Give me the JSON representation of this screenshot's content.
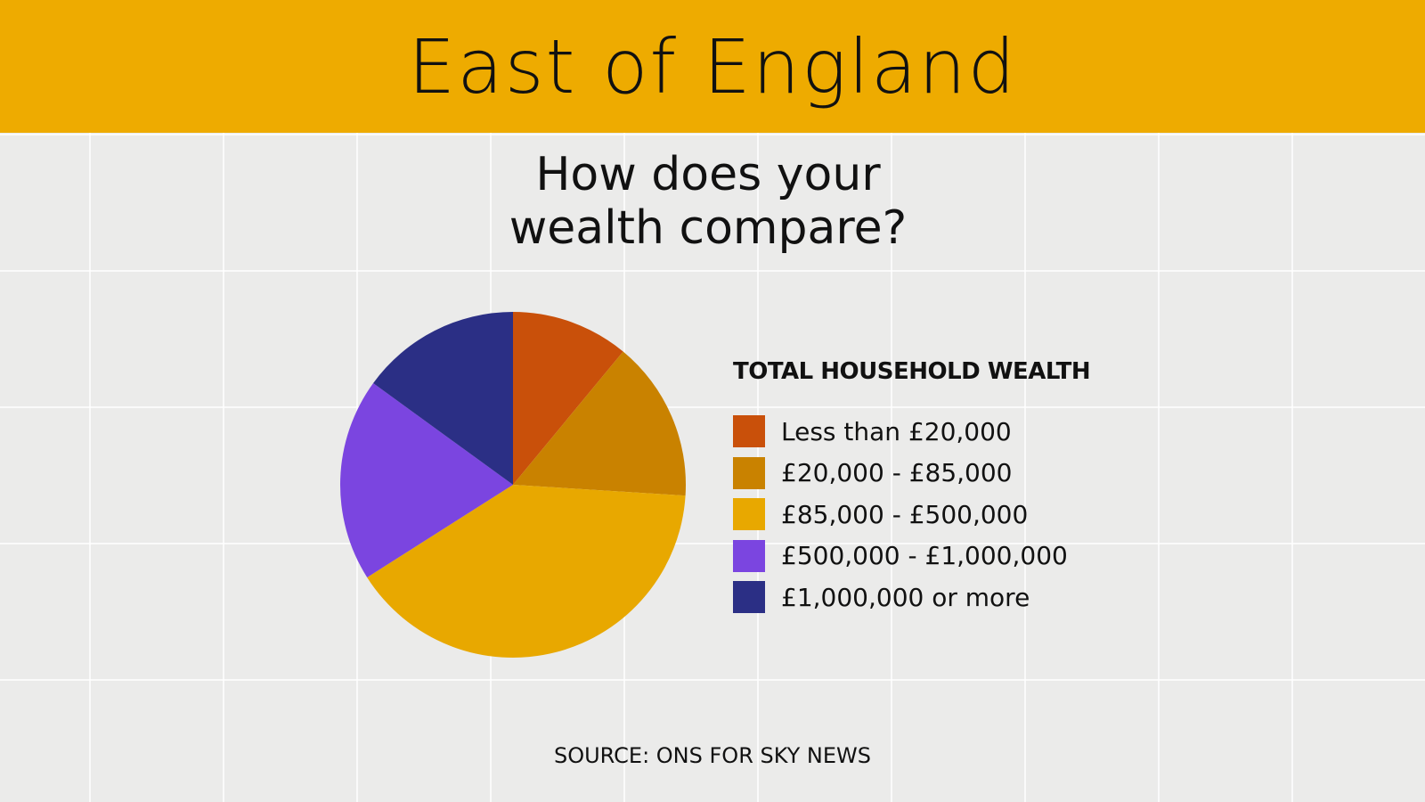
{
  "header": "East of England",
  "source": "SOURCE: ONS FOR SKY NEWS",
  "chart_data": {
    "type": "pie",
    "title": "How does your wealth compare?",
    "legend_title": "TOTAL HOUSEHOLD WEALTH",
    "categories": [
      "Less than £20,000",
      "£20,000 - £85,000",
      "£85,000 - £500,000",
      "£500,000 - £1,000,000",
      "£1,000,000 or more"
    ],
    "values": [
      11,
      15,
      40,
      19,
      15
    ],
    "colors": [
      "#c9500a",
      "#c98200",
      "#e8a800",
      "#7b45e0",
      "#2b2f85"
    ]
  }
}
